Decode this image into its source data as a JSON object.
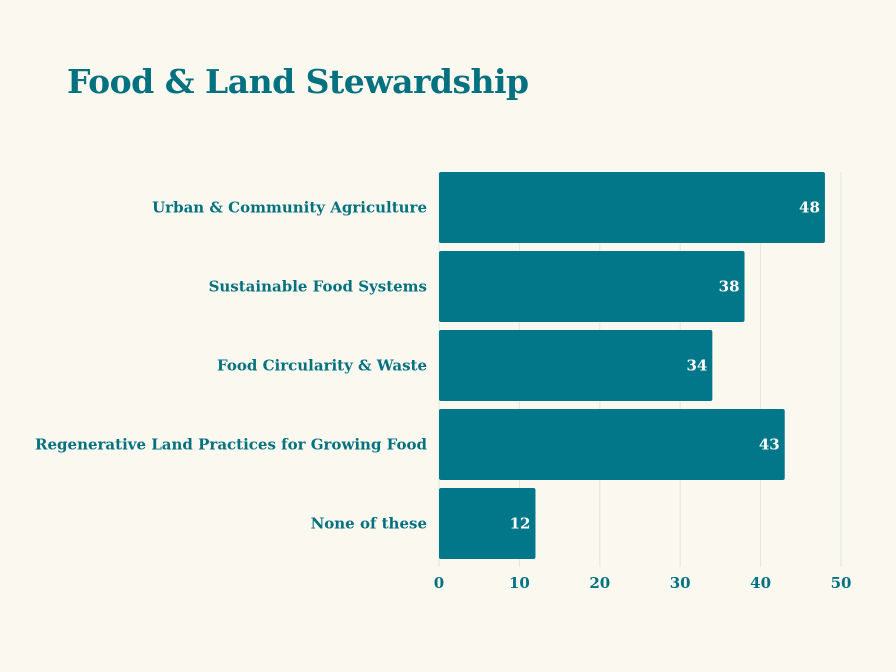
{
  "chart_data": {
    "type": "bar",
    "orientation": "horizontal",
    "title": "Food & Land Stewardship",
    "categories": [
      "Urban & Community Agriculture",
      "Sustainable Food Systems",
      "Food Circularity & Waste",
      "Regenerative Land Practices for Growing Food",
      "None of these"
    ],
    "values": [
      48,
      38,
      34,
      43,
      12
    ],
    "xlim": [
      0,
      50
    ],
    "xticks": [
      0,
      10,
      20,
      30,
      40,
      50
    ],
    "xlabel": "",
    "ylabel": "",
    "grid": true,
    "colors": {
      "bar": "#03778a",
      "title": "#03717f",
      "label": "#03717f",
      "value_label": "#ffffff",
      "grid": "#dfe8e0",
      "background": "#fbf8f0"
    }
  }
}
